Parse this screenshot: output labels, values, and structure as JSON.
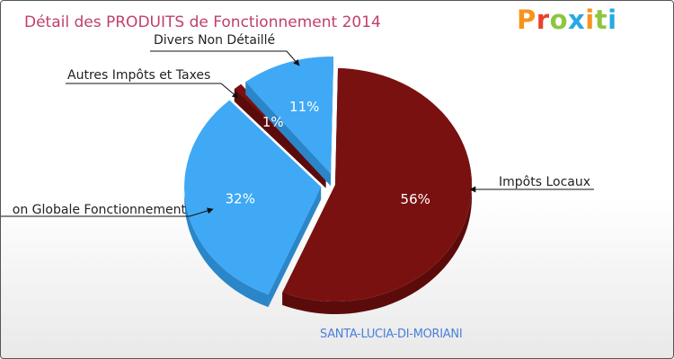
{
  "title": "Détail des PRODUITS de Fonctionnement 2014",
  "logo": {
    "text": "Proxiti",
    "colors": [
      "#f7941d",
      "#e8412e",
      "#8dc63f",
      "#27aae1",
      "#f7941d",
      "#8dc63f",
      "#27aae1"
    ]
  },
  "commune": "SANTA-LUCIA-DI-MORIANI",
  "chart_data": {
    "type": "pie",
    "title": "Détail des PRODUITS de Fonctionnement 2014",
    "slices": [
      {
        "name": "Impôts Locaux",
        "value": 56,
        "pct_label": "56%",
        "color": "#7a1111",
        "side": "#5c0b0b",
        "explode": 0
      },
      {
        "name": "Dotation Globale Fonctionnement",
        "display_label": "on Globale Fonctionnement",
        "value": 32,
        "pct_label": "32%",
        "color": "#3fa9f5",
        "side": "#2b86c9",
        "explode": 16
      },
      {
        "name": "Autres Impôts et Taxes",
        "value": 1,
        "pct_label": "1%",
        "color": "#7a1111",
        "side": "#5c0b0b",
        "explode": 16
      },
      {
        "name": "Divers Non Détaillé",
        "value": 11,
        "pct_label": "11%",
        "color": "#3fa9f5",
        "side": "#2b86c9",
        "explode": 16
      }
    ]
  }
}
